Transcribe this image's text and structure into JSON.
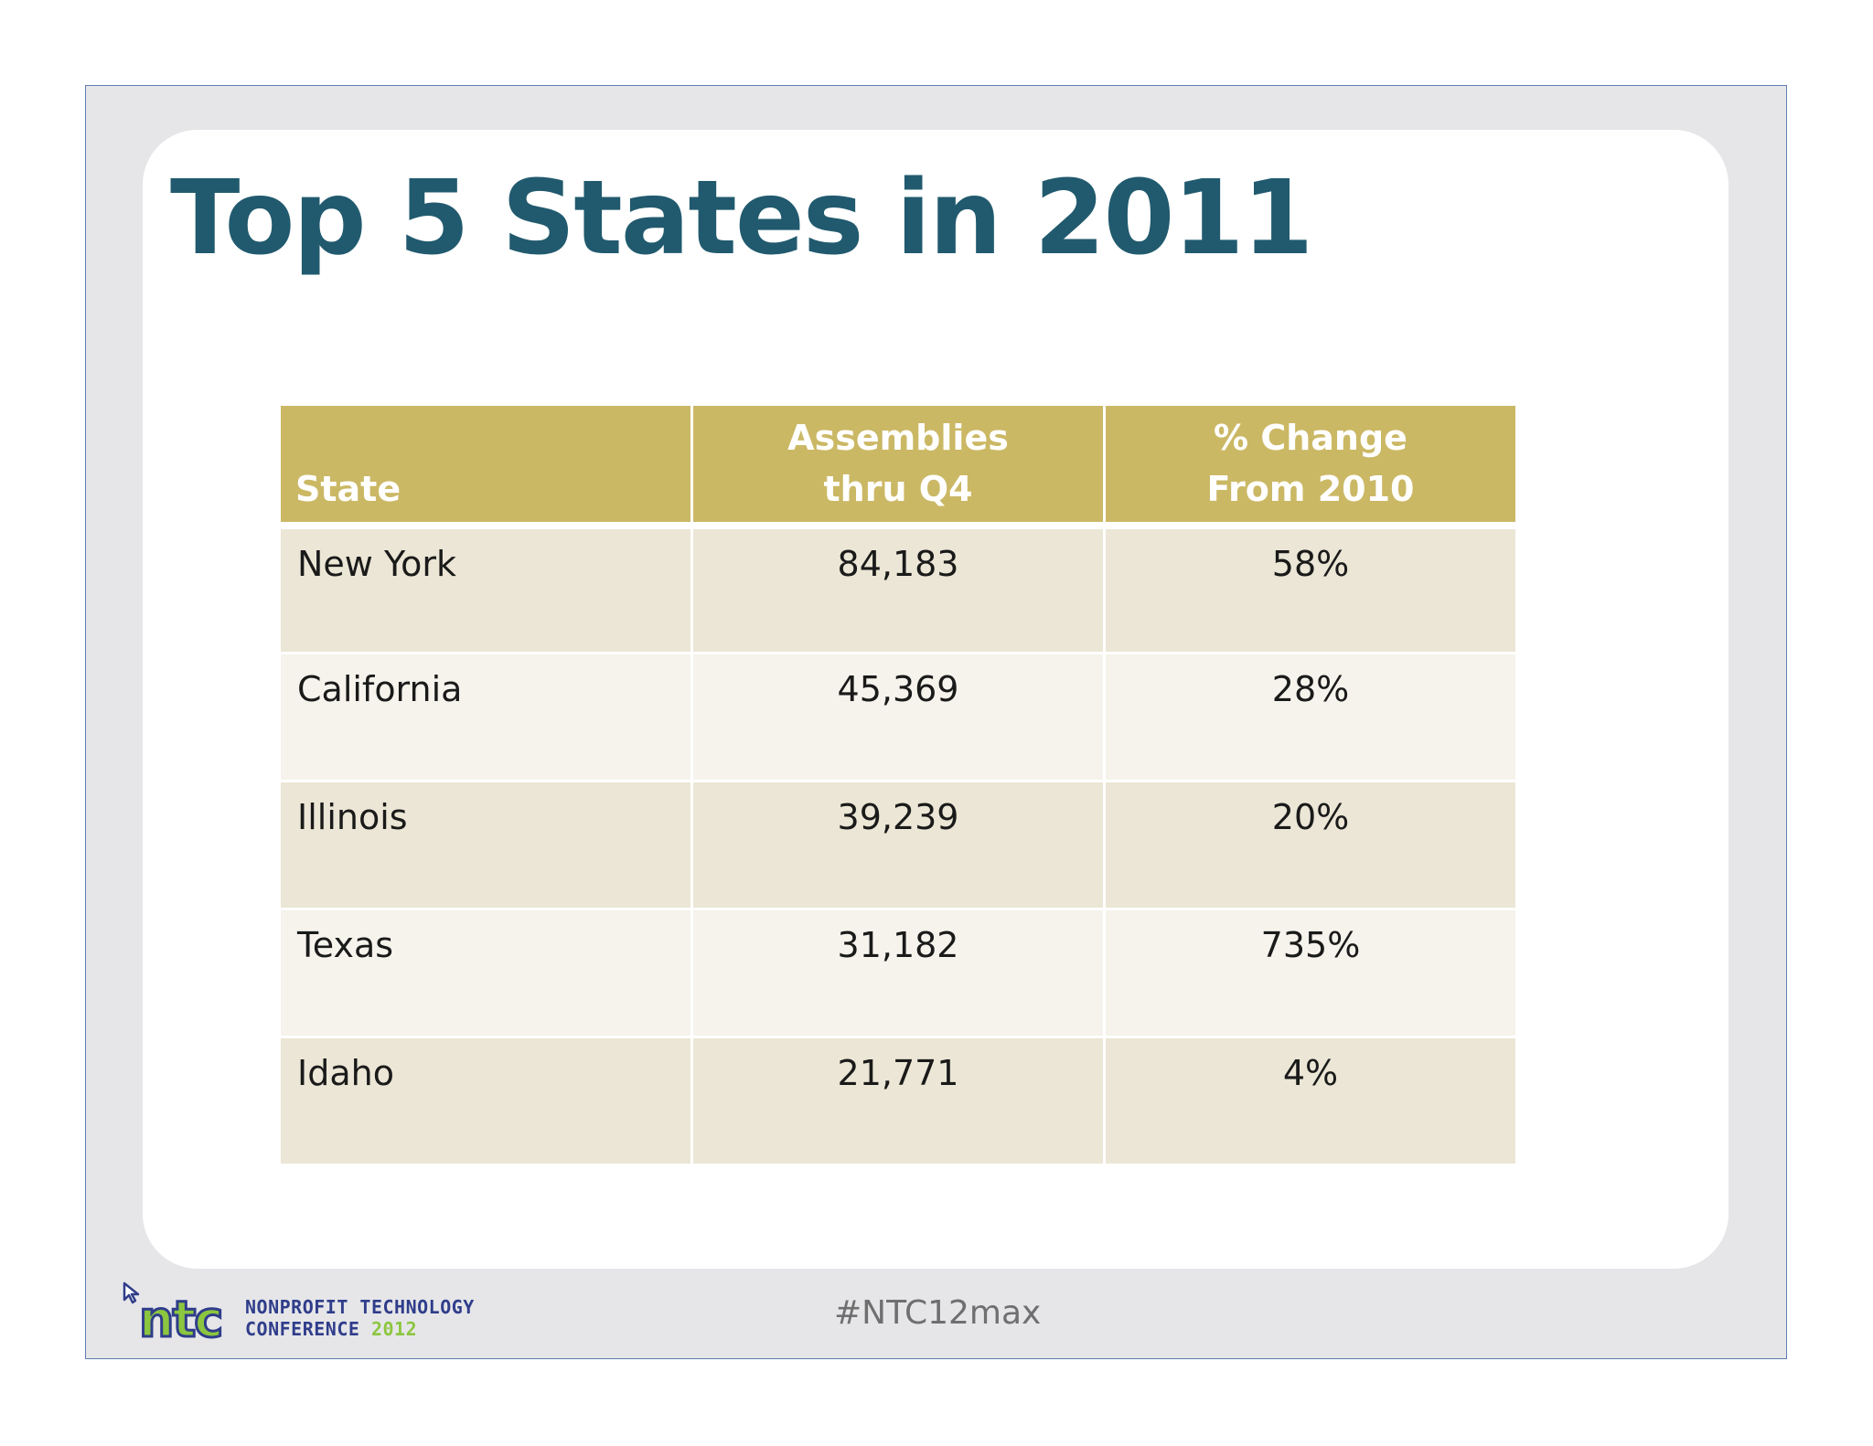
{
  "slide": {
    "title": "Top 5 States in 2011"
  },
  "table": {
    "headers": {
      "state": "State",
      "assemblies_line1": "Assemblies",
      "assemblies_line2": "thru Q4",
      "change_line1": "% Change",
      "change_line2": "From 2010"
    },
    "rows": [
      {
        "state": "New York",
        "assemblies": "84,183",
        "change": "58%"
      },
      {
        "state": "California",
        "assemblies": "45,369",
        "change": "28%"
      },
      {
        "state": "Illinois",
        "assemblies": "39,239",
        "change": "20%"
      },
      {
        "state": "Texas",
        "assemblies": "31,182",
        "change": "735%"
      },
      {
        "state": "Idaho",
        "assemblies": "21,771",
        "change": "4%"
      }
    ]
  },
  "footer": {
    "logo_mark": "ntc",
    "logo_line1": "NONPROFIT TECHNOLOGY",
    "logo_line2_word": "CONFERENCE",
    "logo_line2_year": "2012",
    "hashtag": "#NTC12max"
  },
  "colors": {
    "title": "#215a6e",
    "header_bg": "#cbb865",
    "row_odd": "#ebe6d5",
    "row_even": "#f5f3ec",
    "logo_blue": "#2f3d8a",
    "logo_green": "#8cc63f"
  }
}
